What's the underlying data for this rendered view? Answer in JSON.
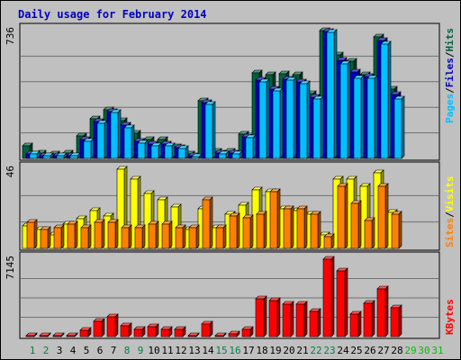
{
  "title": "Daily usage for February 2014",
  "colors": {
    "hits": "#006040",
    "files": "#0000c0",
    "pages": "#00c0ff",
    "visits": "#ffff00",
    "sites": "#ff8000",
    "kbytes": "#ff0000",
    "weekend_day": "#00804a",
    "weekday_day": "#000000",
    "future_day": "#00c000"
  },
  "right_labels": {
    "top": [
      "Pages",
      "/",
      "Files",
      "/",
      "Hits"
    ],
    "middle": [
      "Sites",
      "/",
      "Visits"
    ],
    "bottom": [
      "KBytes"
    ]
  },
  "chart_data": [
    {
      "type": "bar",
      "panel": "hits-files-pages",
      "ymax_label": "736",
      "ylim": [
        0,
        736
      ],
      "categories": [
        "1",
        "2",
        "3",
        "4",
        "5",
        "6",
        "7",
        "8",
        "9",
        "10",
        "11",
        "12",
        "13",
        "14",
        "15",
        "16",
        "17",
        "18",
        "19",
        "20",
        "21",
        "22",
        "23",
        "24",
        "25",
        "26",
        "27",
        "28",
        "29",
        "30",
        "31"
      ],
      "series": [
        {
          "name": "Hits",
          "values": [
            70,
            30,
            25,
            30,
            130,
            230,
            280,
            220,
            145,
            110,
            110,
            65,
            25,
            330,
            40,
            40,
            140,
            490,
            480,
            485,
            480,
            375,
            736,
            595,
            560,
            480,
            700,
            400,
            0,
            0,
            0
          ]
        },
        {
          "name": "Files",
          "values": [
            25,
            15,
            15,
            15,
            110,
            210,
            270,
            190,
            100,
            85,
            85,
            60,
            15,
            320,
            30,
            30,
            125,
            450,
            400,
            455,
            440,
            355,
            730,
            565,
            500,
            470,
            680,
            370,
            0,
            0,
            0
          ]
        },
        {
          "name": "Pages",
          "values": [
            25,
            15,
            15,
            15,
            100,
            200,
            265,
            175,
            90,
            70,
            75,
            55,
            12,
            310,
            25,
            25,
            120,
            440,
            390,
            450,
            430,
            340,
            725,
            545,
            460,
            460,
            660,
            340,
            0,
            0,
            0
          ]
        }
      ]
    },
    {
      "type": "bar",
      "panel": "sites-visits",
      "ymax_label": "46",
      "ylim": [
        0,
        46
      ],
      "categories": [
        "1",
        "2",
        "3",
        "4",
        "5",
        "6",
        "7",
        "8",
        "9",
        "10",
        "11",
        "12",
        "13",
        "14",
        "15",
        "16",
        "17",
        "18",
        "19",
        "20",
        "21",
        "22",
        "23",
        "24",
        "25",
        "26",
        "27",
        "28",
        "29",
        "30",
        "31"
      ],
      "series": [
        {
          "name": "Visits",
          "values": [
            13,
            11,
            8,
            14,
            17,
            22,
            19,
            46,
            40,
            32,
            28,
            24,
            11,
            23,
            12,
            20,
            25,
            34,
            33,
            23,
            22,
            20,
            8,
            40,
            40,
            36,
            44,
            21,
            0,
            0,
            0
          ]
        },
        {
          "name": "Sites",
          "values": [
            15,
            11,
            12,
            14,
            12,
            15,
            15,
            12,
            12,
            14,
            14,
            12,
            12,
            28,
            12,
            19,
            18,
            20,
            33,
            23,
            23,
            20,
            7,
            36,
            26,
            16,
            36,
            20,
            0,
            0,
            0
          ]
        }
      ]
    },
    {
      "type": "bar",
      "panel": "kbytes",
      "ymax_label": "7145",
      "ylim": [
        0,
        7145
      ],
      "categories": [
        "1",
        "2",
        "3",
        "4",
        "5",
        "6",
        "7",
        "8",
        "9",
        "10",
        "11",
        "12",
        "13",
        "14",
        "15",
        "16",
        "17",
        "18",
        "19",
        "20",
        "21",
        "22",
        "23",
        "24",
        "25",
        "26",
        "27",
        "28",
        "29",
        "30",
        "31"
      ],
      "series": [
        {
          "name": "KBytes",
          "values": [
            80,
            80,
            80,
            80,
            600,
            1400,
            1820,
            1000,
            650,
            920,
            650,
            650,
            120,
            1190,
            90,
            230,
            690,
            3450,
            3300,
            2950,
            3000,
            2350,
            7145,
            6050,
            2100,
            3100,
            4400,
            2700,
            0,
            0,
            0
          ]
        }
      ]
    }
  ]
}
